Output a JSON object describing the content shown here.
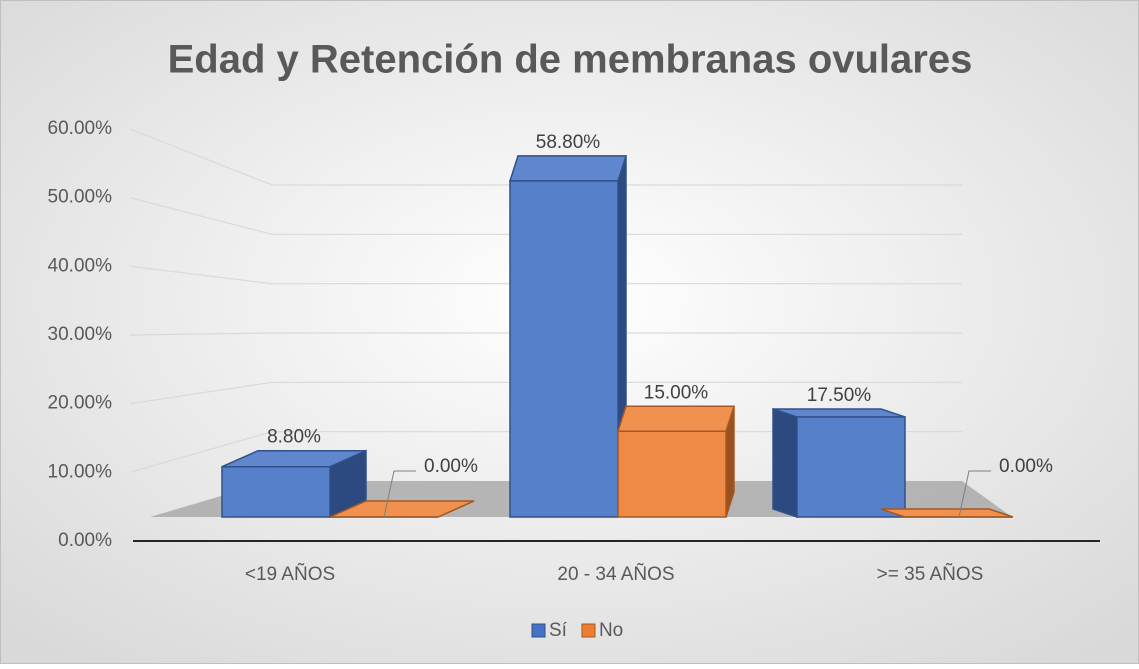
{
  "chart_data": {
    "type": "bar3d",
    "title": "Edad y Retención de membranas ovulares",
    "categories": [
      "<19 AÑOS",
      "20 - 34 AÑOS",
      ">= 35 AÑOS"
    ],
    "series": [
      {
        "name": "Sí",
        "color": "#4472c4",
        "values": [
          8.8,
          58.8,
          17.5
        ],
        "value_labels": [
          "8.80%",
          "58.80%",
          "17.50%"
        ]
      },
      {
        "name": "No",
        "color": "#ed7d31",
        "values": [
          0,
          15,
          0
        ],
        "value_labels": [
          "0.00%",
          "15.00%",
          "0.00%"
        ]
      }
    ],
    "ylim": [
      0,
      60
    ],
    "yticks": [
      {
        "value": 0,
        "label": "0.00%"
      },
      {
        "value": 10,
        "label": "10.00%"
      },
      {
        "value": 20,
        "label": "20.00%"
      },
      {
        "value": 30,
        "label": "30.00%"
      },
      {
        "value": 40,
        "label": "40.00%"
      },
      {
        "value": 50,
        "label": "50.00%"
      },
      {
        "value": 60,
        "label": "60.00%"
      }
    ],
    "grid": true,
    "legend": "bottom"
  }
}
